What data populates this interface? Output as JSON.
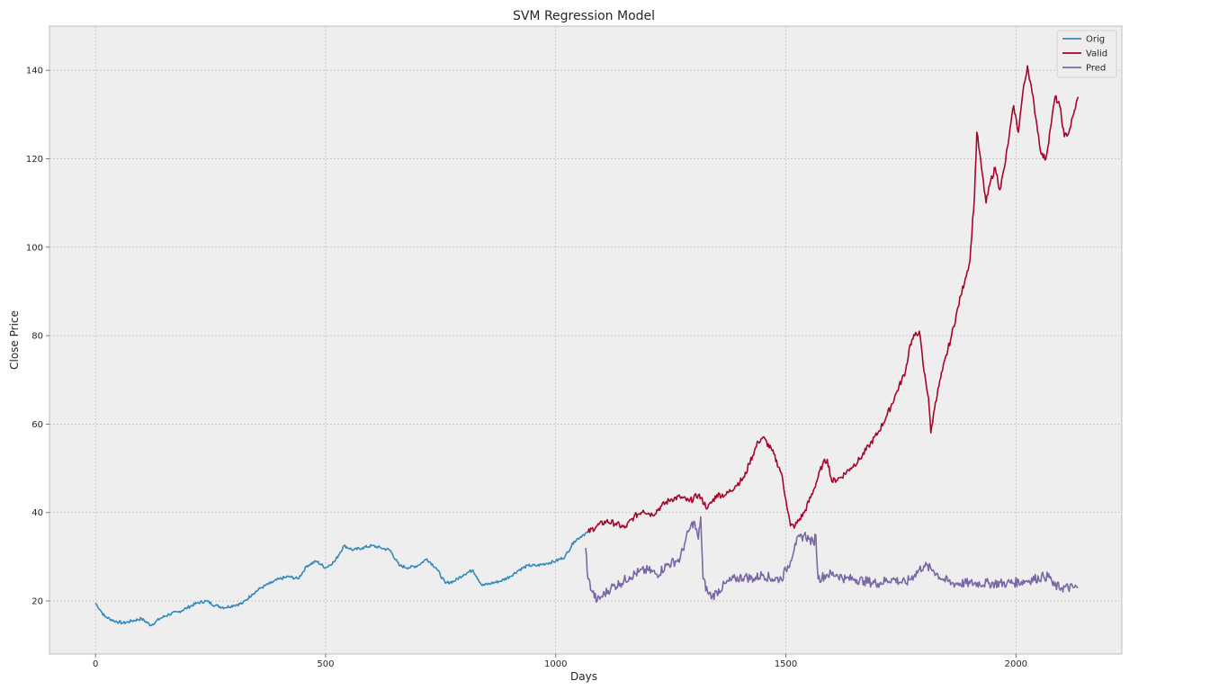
{
  "chart_data": {
    "type": "line",
    "title": "SVM Regression Model",
    "xlabel": "Days",
    "ylabel": "Close Price",
    "xlim": [
      -100,
      2230
    ],
    "ylim": [
      8,
      150
    ],
    "xticks": [
      0,
      500,
      1000,
      1500,
      2000
    ],
    "yticks": [
      20,
      40,
      60,
      80,
      100,
      120,
      140
    ],
    "grid": true,
    "legend_position": "top-right",
    "series": [
      {
        "name": "Orig",
        "color": "#348abd",
        "x": [
          0,
          10,
          20,
          40,
          60,
          80,
          100,
          120,
          140,
          160,
          180,
          200,
          220,
          240,
          260,
          280,
          300,
          320,
          340,
          360,
          380,
          400,
          420,
          440,
          460,
          480,
          500,
          520,
          540,
          560,
          580,
          600,
          620,
          640,
          660,
          680,
          700,
          720,
          740,
          760,
          780,
          800,
          820,
          840,
          860,
          880,
          900,
          920,
          940,
          960,
          980,
          1000,
          1020,
          1040,
          1060,
          1070
        ],
        "y": [
          19.5,
          18,
          16.5,
          15.5,
          15,
          15.5,
          16,
          14.5,
          16,
          17,
          17.5,
          18.5,
          19.5,
          20,
          19,
          18.5,
          19,
          19.5,
          21.5,
          23,
          24,
          25,
          25.5,
          25,
          28,
          29,
          27.5,
          29,
          32.5,
          31.5,
          32,
          32.5,
          32,
          31.5,
          28,
          27.5,
          28,
          29.5,
          27.5,
          24,
          24.5,
          26,
          27,
          23.5,
          24,
          24.5,
          25.5,
          27,
          28,
          28,
          28.5,
          29,
          30,
          33.5,
          35,
          35.5
        ]
      },
      {
        "name": "Valid",
        "color": "#a60628",
        "x": [
          1070,
          1090,
          1110,
          1130,
          1150,
          1170,
          1190,
          1210,
          1230,
          1250,
          1270,
          1290,
          1310,
          1330,
          1350,
          1370,
          1390,
          1410,
          1420,
          1440,
          1450,
          1470,
          1490,
          1500,
          1510,
          1520,
          1540,
          1560,
          1580,
          1590,
          1600,
          1620,
          1640,
          1660,
          1680,
          1700,
          1720,
          1740,
          1760,
          1770,
          1780,
          1790,
          1800,
          1810,
          1815,
          1825,
          1840,
          1860,
          1880,
          1890,
          1900,
          1910,
          1915,
          1925,
          1935,
          1945,
          1955,
          1965,
          1975,
          1985,
          1995,
          2005,
          2015,
          2025,
          2035,
          2045,
          2055,
          2065,
          2075,
          2085,
          2095,
          2105,
          2115,
          2125,
          2135
        ],
        "y": [
          35.5,
          37,
          38,
          37.5,
          36.5,
          39,
          40.5,
          39.5,
          41.5,
          43,
          43.5,
          42.5,
          44,
          41,
          44,
          44,
          46,
          48,
          51,
          56,
          57,
          54,
          49,
          43,
          37,
          37,
          40,
          45,
          51,
          52,
          47,
          48,
          50,
          52,
          55,
          58,
          62,
          67,
          72,
          78,
          80,
          81,
          72,
          66,
          58,
          65,
          72,
          80,
          89,
          93,
          97,
          112,
          126,
          118,
          110,
          115,
          118,
          113,
          118,
          125,
          132,
          126,
          135,
          141,
          135,
          128,
          121,
          120,
          127,
          134,
          132,
          125,
          126,
          130,
          134
        ]
      },
      {
        "name": "Pred",
        "color": "#7a68a6",
        "x": [
          1065,
          1070,
          1080,
          1090,
          1100,
          1120,
          1140,
          1160,
          1180,
          1200,
          1220,
          1240,
          1260,
          1270,
          1280,
          1290,
          1300,
          1310,
          1315,
          1320,
          1330,
          1340,
          1350,
          1370,
          1390,
          1410,
          1430,
          1450,
          1470,
          1490,
          1500,
          1510,
          1520,
          1540,
          1550,
          1560,
          1565,
          1570,
          1590,
          1610,
          1630,
          1650,
          1670,
          1700,
          1730,
          1760,
          1780,
          1800,
          1820,
          1840,
          1860,
          1900,
          1940,
          1980,
          2020,
          2060,
          2075,
          2080,
          2100,
          2135
        ],
        "y": [
          32,
          25,
          22,
          20,
          21,
          23,
          24,
          25.5,
          26.5,
          27,
          26,
          28,
          29,
          29.5,
          33,
          36,
          38,
          34,
          39,
          25,
          22,
          21,
          22,
          24,
          25,
          25.5,
          25,
          26,
          25,
          25,
          27,
          29,
          33,
          35,
          34,
          33,
          35,
          25,
          26,
          26,
          25,
          25,
          24.5,
          24,
          25,
          24,
          26,
          28,
          27,
          25,
          24,
          24,
          24,
          24,
          24.5,
          25.5,
          25.5,
          23.5,
          23,
          23
        ]
      }
    ]
  }
}
